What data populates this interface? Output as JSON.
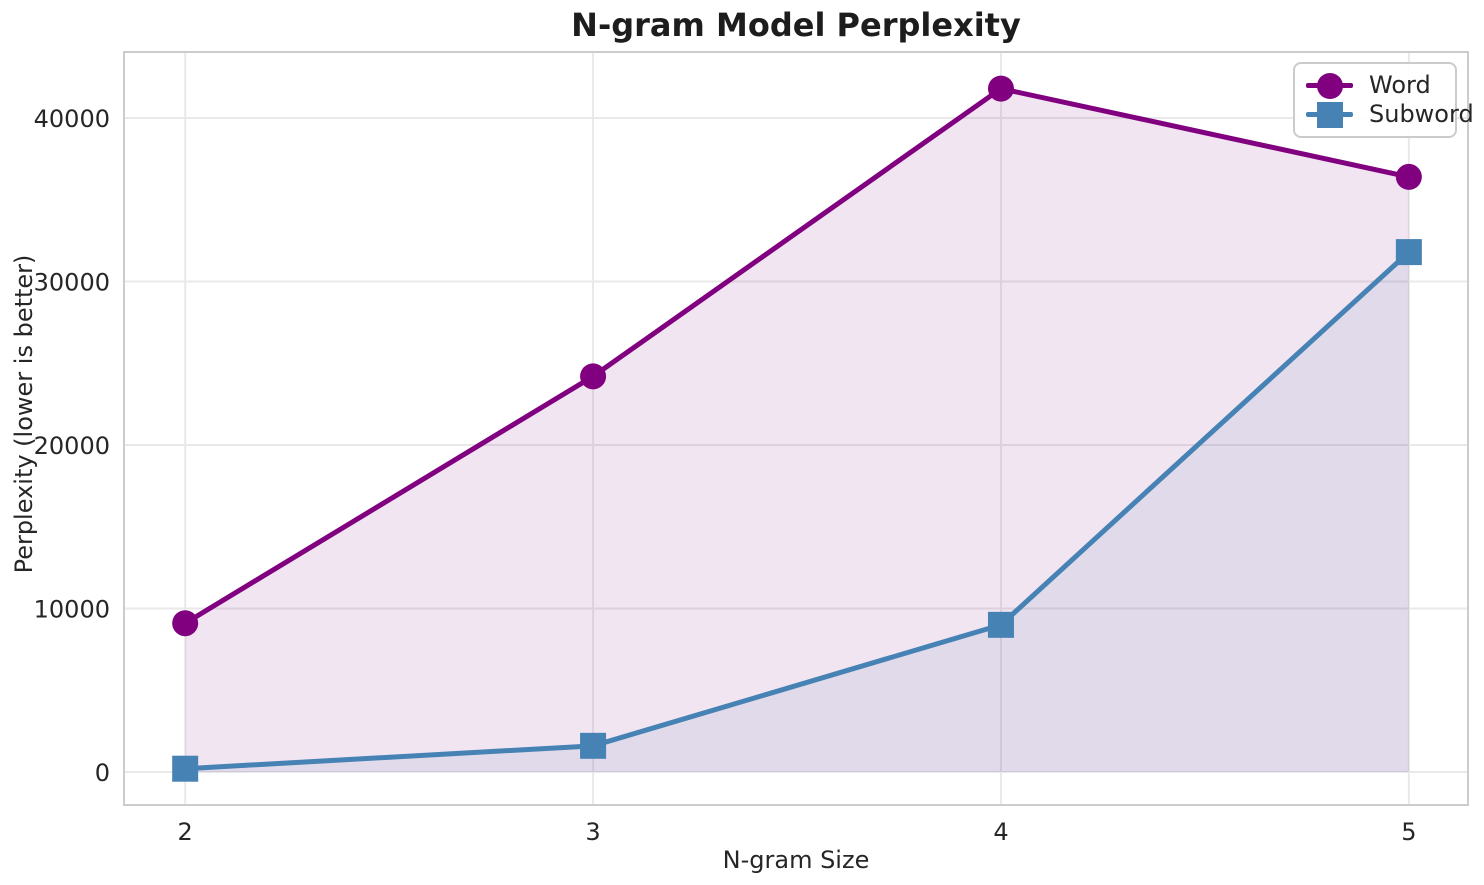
{
  "title": "N-gram Model Perplexity",
  "chart_data": {
    "type": "line",
    "title": "N-gram Model Perplexity",
    "xlabel": "N-gram Size",
    "ylabel": "Perplexity (lower is better)",
    "x": [
      2,
      3,
      4,
      5
    ],
    "series": [
      {
        "name": "Word",
        "values": [
          9100,
          24200,
          41800,
          36400
        ],
        "color": "#800080",
        "marker": "circle",
        "fill_to_zero": true,
        "fill_alpha": 0.1
      },
      {
        "name": "Subword",
        "values": [
          200,
          1600,
          9000,
          31800
        ],
        "color": "#4682b4",
        "marker": "square",
        "fill_to_zero": true,
        "fill_alpha": 0.1
      }
    ],
    "xticks": [
      2,
      3,
      4,
      5
    ],
    "yticks": [
      0,
      10000,
      20000,
      30000,
      40000
    ],
    "xlim": [
      1.85,
      5.145
    ],
    "ylim": [
      -2020,
      44040
    ],
    "grid": true,
    "grid_color": "#e9e9e9",
    "spine_color": "#cccccc",
    "tick_color": "#262626",
    "legend_position": "upper right"
  }
}
